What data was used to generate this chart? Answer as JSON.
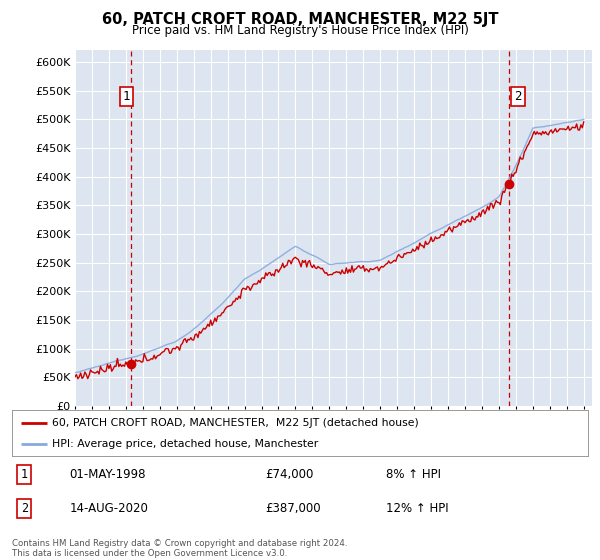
{
  "title": "60, PATCH CROFT ROAD, MANCHESTER, M22 5JT",
  "subtitle": "Price paid vs. HM Land Registry's House Price Index (HPI)",
  "ylabel_ticks": [
    "£0",
    "£50K",
    "£100K",
    "£150K",
    "£200K",
    "£250K",
    "£300K",
    "£350K",
    "£400K",
    "£450K",
    "£500K",
    "£550K",
    "£600K"
  ],
  "ytick_values": [
    0,
    50000,
    100000,
    150000,
    200000,
    250000,
    300000,
    350000,
    400000,
    450000,
    500000,
    550000,
    600000
  ],
  "ylim": [
    0,
    620000
  ],
  "xlim_start": 1995.0,
  "xlim_end": 2025.5,
  "background_color": "#dde5f0",
  "plot_bg_color": "#dde5f0",
  "grid_color": "#ffffff",
  "sale1_x": 1998.33,
  "sale1_y": 74000,
  "sale1_label": "1",
  "sale1_date": "01-MAY-1998",
  "sale1_price": "£74,000",
  "sale1_hpi": "8% ↑ HPI",
  "sale2_x": 2020.62,
  "sale2_y": 387000,
  "sale2_label": "2",
  "sale2_date": "14-AUG-2020",
  "sale2_price": "£387,000",
  "sale2_hpi": "12% ↑ HPI",
  "line_color_red": "#cc0000",
  "line_color_blue": "#88aadd",
  "legend_label_red": "60, PATCH CROFT ROAD, MANCHESTER,  M22 5JT (detached house)",
  "legend_label_blue": "HPI: Average price, detached house, Manchester",
  "footer": "Contains HM Land Registry data © Crown copyright and database right 2024.\nThis data is licensed under the Open Government Licence v3.0.",
  "xtick_years": [
    1995,
    1996,
    1997,
    1998,
    1999,
    2000,
    2001,
    2002,
    2003,
    2004,
    2005,
    2006,
    2007,
    2008,
    2009,
    2010,
    2011,
    2012,
    2013,
    2014,
    2015,
    2016,
    2017,
    2018,
    2019,
    2020,
    2021,
    2022,
    2023,
    2024,
    2025
  ]
}
